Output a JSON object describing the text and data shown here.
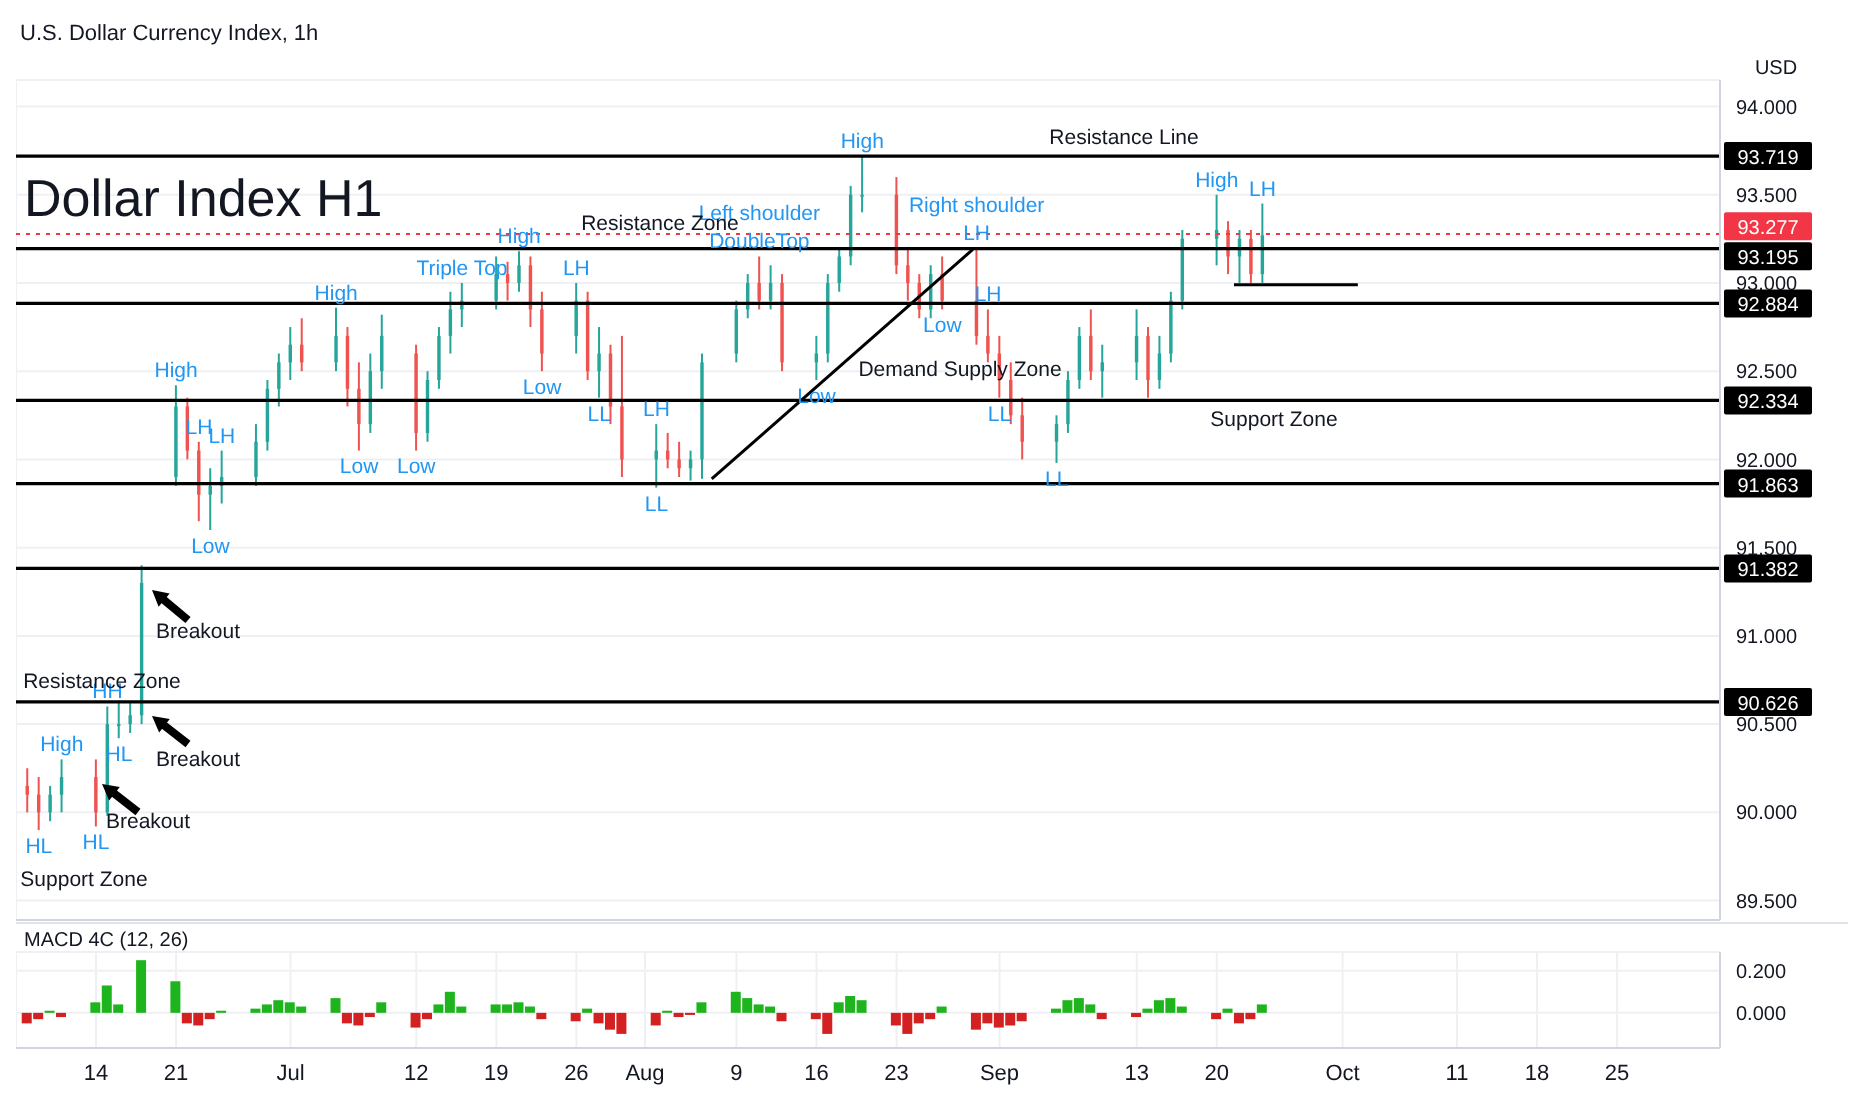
{
  "chart_data": [
    {
      "type": "candlestick",
      "subtitle": "U.S. Dollar Currency Index, 1h",
      "title": "Dollar Index H1",
      "ylabel": "USD",
      "x": [
        "--06-08",
        "--06-09",
        "--06-10",
        "--06-11",
        "--06-14",
        "--06-15",
        "--06-16",
        "--06-17",
        "--06-18",
        "--06-21",
        "--06-22",
        "--06-23",
        "--06-24",
        "--06-25",
        "--06-28",
        "--06-29",
        "--06-30",
        "--07-01",
        "--07-02",
        "--07-05",
        "--07-06",
        "--07-07",
        "--07-08",
        "--07-09",
        "--07-12",
        "--07-13",
        "--07-14",
        "--07-15",
        "--07-16",
        "--07-19",
        "--07-20",
        "--07-21",
        "--07-22",
        "--07-23",
        "--07-26",
        "--07-27",
        "--07-28",
        "--07-29",
        "--07-30",
        "--08-02",
        "--08-03",
        "--08-04",
        "--08-05",
        "--08-06",
        "--08-09",
        "--08-10",
        "--08-11",
        "--08-12",
        "--08-13",
        "--08-16",
        "--08-17",
        "--08-18",
        "--08-19",
        "--08-20",
        "--08-23",
        "--08-24",
        "--08-25",
        "--08-26",
        "--08-27",
        "--08-30",
        "--08-31",
        "--09-01",
        "--09-02",
        "--09-03",
        "--09-06",
        "--09-07",
        "--09-08",
        "--09-09",
        "--09-10",
        "--09-13",
        "--09-14",
        "--09-15",
        "--09-16",
        "--09-17",
        "--09-20",
        "--09-21",
        "--09-22",
        "--09-23",
        "--09-24"
      ],
      "ohlc": [
        [
          90.15,
          90.25,
          90.0,
          90.1
        ],
        [
          90.1,
          90.2,
          89.9,
          90.0
        ],
        [
          90.0,
          90.15,
          89.95,
          90.1
        ],
        [
          90.1,
          90.3,
          90.0,
          90.2
        ],
        [
          90.2,
          90.3,
          89.92,
          90.0
        ],
        [
          90.0,
          90.6,
          89.98,
          90.5
        ],
        [
          90.5,
          90.62,
          90.42,
          90.5
        ],
        [
          90.5,
          90.62,
          90.45,
          90.55
        ],
        [
          90.55,
          91.4,
          90.5,
          91.3
        ],
        [
          91.9,
          92.42,
          91.85,
          92.3
        ],
        [
          92.3,
          92.35,
          92.0,
          92.05
        ],
        [
          92.05,
          92.1,
          91.65,
          91.8
        ],
        [
          91.8,
          91.95,
          91.6,
          91.85
        ],
        [
          91.85,
          92.05,
          91.75,
          91.9
        ],
        [
          91.9,
          92.2,
          91.85,
          92.1
        ],
        [
          92.1,
          92.45,
          92.05,
          92.4
        ],
        [
          92.4,
          92.6,
          92.3,
          92.55
        ],
        [
          92.55,
          92.75,
          92.45,
          92.65
        ],
        [
          92.65,
          92.8,
          92.5,
          92.55
        ],
        [
          92.55,
          92.86,
          92.5,
          92.7
        ],
        [
          92.7,
          92.75,
          92.3,
          92.4
        ],
        [
          92.4,
          92.55,
          92.05,
          92.2
        ],
        [
          92.2,
          92.6,
          92.15,
          92.5
        ],
        [
          92.5,
          92.82,
          92.4,
          92.7
        ],
        [
          92.6,
          92.65,
          92.05,
          92.15
        ],
        [
          92.15,
          92.5,
          92.1,
          92.45
        ],
        [
          92.45,
          92.75,
          92.4,
          92.7
        ],
        [
          92.7,
          92.95,
          92.6,
          92.85
        ],
        [
          92.85,
          93.0,
          92.75,
          92.9
        ],
        [
          92.9,
          93.15,
          92.85,
          93.05
        ],
        [
          93.05,
          93.12,
          92.9,
          93.0
        ],
        [
          93.0,
          93.18,
          92.95,
          93.1
        ],
        [
          93.1,
          93.15,
          92.75,
          92.85
        ],
        [
          92.85,
          92.95,
          92.5,
          92.6
        ],
        [
          92.7,
          93.0,
          92.6,
          92.9
        ],
        [
          92.9,
          92.95,
          92.45,
          92.5
        ],
        [
          92.5,
          92.75,
          92.35,
          92.6
        ],
        [
          92.6,
          92.65,
          92.2,
          92.3
        ],
        [
          92.3,
          92.7,
          91.9,
          92.0
        ],
        [
          92.0,
          92.2,
          91.84,
          92.05
        ],
        [
          92.05,
          92.15,
          91.95,
          92.0
        ],
        [
          92.0,
          92.1,
          91.9,
          91.95
        ],
        [
          91.95,
          92.05,
          91.88,
          92.0
        ],
        [
          92.0,
          92.6,
          91.89,
          92.55
        ],
        [
          92.6,
          92.9,
          92.55,
          92.85
        ],
        [
          92.85,
          93.05,
          92.8,
          93.0
        ],
        [
          93.0,
          93.15,
          92.85,
          92.9
        ],
        [
          92.9,
          93.1,
          92.85,
          93.0
        ],
        [
          93.0,
          93.05,
          92.5,
          92.55
        ],
        [
          92.55,
          92.7,
          92.45,
          92.6
        ],
        [
          92.6,
          93.05,
          92.55,
          93.0
        ],
        [
          93.0,
          93.2,
          92.95,
          93.15
        ],
        [
          93.15,
          93.55,
          93.1,
          93.5
        ],
        [
          93.5,
          93.72,
          93.4,
          93.5
        ],
        [
          93.5,
          93.6,
          93.05,
          93.1
        ],
        [
          93.1,
          93.2,
          92.9,
          93.0
        ],
        [
          93.0,
          93.05,
          92.8,
          92.85
        ],
        [
          92.85,
          93.1,
          92.8,
          93.05
        ],
        [
          93.05,
          93.15,
          92.85,
          92.9
        ],
        [
          92.9,
          93.2,
          92.65,
          92.7
        ],
        [
          92.7,
          92.85,
          92.55,
          92.6
        ],
        [
          92.6,
          92.7,
          92.35,
          92.45
        ],
        [
          92.45,
          92.55,
          92.2,
          92.25
        ],
        [
          92.25,
          92.35,
          92.0,
          92.1
        ],
        [
          92.1,
          92.25,
          91.98,
          92.2
        ],
        [
          92.2,
          92.5,
          92.15,
          92.45
        ],
        [
          92.45,
          92.75,
          92.4,
          92.7
        ],
        [
          92.7,
          92.85,
          92.45,
          92.5
        ],
        [
          92.5,
          92.65,
          92.35,
          92.55
        ],
        [
          92.55,
          92.85,
          92.45,
          92.7
        ],
        [
          92.7,
          92.75,
          92.35,
          92.45
        ],
        [
          92.45,
          92.7,
          92.4,
          92.6
        ],
        [
          92.6,
          92.95,
          92.55,
          92.9
        ],
        [
          92.9,
          93.3,
          92.85,
          93.25
        ],
        [
          93.25,
          93.5,
          93.1,
          93.3
        ],
        [
          93.3,
          93.35,
          93.05,
          93.15
        ],
        [
          93.15,
          93.3,
          93.0,
          93.25
        ],
        [
          93.25,
          93.3,
          93.0,
          93.05
        ],
        [
          93.05,
          93.45,
          93.0,
          93.27
        ]
      ],
      "colors": [
        "#ef5350",
        "#ef5350",
        "#26a69a",
        "#26a69a",
        "#ef5350",
        "#26a69a",
        "#26a69a",
        "#26a69a",
        "#26a69a",
        "#26a69a",
        "#ef5350",
        "#ef5350",
        "#26a69a",
        "#26a69a",
        "#26a69a",
        "#26a69a",
        "#26a69a",
        "#26a69a",
        "#ef5350",
        "#26a69a",
        "#ef5350",
        "#ef5350",
        "#26a69a",
        "#26a69a",
        "#ef5350",
        "#26a69a",
        "#26a69a",
        "#26a69a",
        "#26a69a",
        "#26a69a",
        "#ef5350",
        "#26a69a",
        "#ef5350",
        "#ef5350",
        "#26a69a",
        "#ef5350",
        "#26a69a",
        "#ef5350",
        "#ef5350",
        "#26a69a",
        "#ef5350",
        "#ef5350",
        "#26a69a",
        "#26a69a",
        "#26a69a",
        "#26a69a",
        "#ef5350",
        "#26a69a",
        "#ef5350",
        "#26a69a",
        "#26a69a",
        "#26a69a",
        "#26a69a",
        "#26a69a",
        "#ef5350",
        "#ef5350",
        "#ef5350",
        "#26a69a",
        "#ef5350",
        "#ef5350",
        "#ef5350",
        "#ef5350",
        "#ef5350",
        "#ef5350",
        "#26a69a",
        "#26a69a",
        "#26a69a",
        "#ef5350",
        "#26a69a",
        "#26a69a",
        "#ef5350",
        "#26a69a",
        "#26a69a",
        "#26a69a",
        "#26a69a",
        "#ef5350",
        "#26a69a",
        "#ef5350",
        "#26a69a"
      ],
      "series": [
        {
          "type": "line",
          "color": "#000000",
          "x": [
            "--08-06T20:00",
            "--08-29T16:00"
          ],
          "values": [
            91.89,
            93.19
          ]
        },
        {
          "type": "line",
          "color": "#000000",
          "x": [
            "--09-21T12:00",
            "--10-02T08:00"
          ],
          "values": [
            92.99,
            92.99
          ]
        }
      ],
      "xlim": [
        "--06-07",
        "--11-03"
      ],
      "xticks": [
        {
          "value": "--06-14",
          "label": "14"
        },
        {
          "value": "--06-21",
          "label": "21"
        },
        {
          "value": "--07-01",
          "label": "Jul"
        },
        {
          "value": "--07-12",
          "label": "12"
        },
        {
          "value": "--07-19",
          "label": "19"
        },
        {
          "value": "--07-26",
          "label": "26"
        },
        {
          "value": "--08-01",
          "label": "Aug"
        },
        {
          "value": "--08-09",
          "label": "9"
        },
        {
          "value": "--08-16",
          "label": "16"
        },
        {
          "value": "--08-23",
          "label": "23"
        },
        {
          "value": "--09-01",
          "label": "Sep"
        },
        {
          "value": "--09-13",
          "label": "13"
        },
        {
          "value": "--09-20",
          "label": "20"
        },
        {
          "value": "--10-01",
          "label": "Oct"
        },
        {
          "value": "--10-11",
          "label": "11"
        },
        {
          "value": "--10-18",
          "label": "18"
        },
        {
          "value": "--10-25",
          "label": "25"
        }
      ],
      "ylim": [
        89.39,
        94.15
      ],
      "yticks": [
        {
          "value": 89.5,
          "label": "89.500"
        },
        {
          "value": 90,
          "label": "90.000"
        },
        {
          "value": 90.5,
          "label": "90.500"
        },
        {
          "value": 91,
          "label": "91.000"
        },
        {
          "value": 91.5,
          "label": "91.500"
        },
        {
          "value": 92,
          "label": "92.000"
        },
        {
          "value": 92.5,
          "label": "92.500"
        },
        {
          "value": 93,
          "label": "93.000"
        },
        {
          "value": 93.5,
          "label": "93.500"
        },
        {
          "value": 94,
          "label": "94.000"
        }
      ],
      "grid": true,
      "tick_labels": "y",
      "ref_lines": [
        {
          "axis": "y",
          "value": 93.719,
          "label": "93.719",
          "color": "#000000"
        },
        {
          "axis": "y",
          "value": 93.277,
          "label": "93.277",
          "color": "#f23645",
          "line_style": "dotted"
        },
        {
          "axis": "y",
          "value": 93.195,
          "label": "93.195",
          "color": "#000000"
        },
        {
          "axis": "y",
          "value": 92.884,
          "label": "92.884",
          "color": "#000000"
        },
        {
          "axis": "y",
          "value": 92.334,
          "label": "92.334",
          "color": "#000000"
        },
        {
          "axis": "y",
          "value": 91.863,
          "label": "91.863",
          "color": "#000000"
        },
        {
          "axis": "y",
          "value": 91.382,
          "label": "91.382",
          "color": "#000000"
        },
        {
          "axis": "y",
          "value": 90.626,
          "label": "90.626",
          "color": "#000000"
        }
      ],
      "annotations": [
        "Resistance Zone",
        "Resistance Line",
        "Demand Supply Zone",
        "Support Zone",
        "Breakout",
        "Breakout",
        "Breakout",
        "Resistance Zone",
        "Support Zone",
        {
          "text": "HL",
          "x": "--06-09",
          "y": 89.9
        },
        {
          "text": "High",
          "x": "--06-11",
          "y": 90.3
        },
        {
          "text": "HL",
          "x": "--06-14",
          "y": 89.92
        },
        {
          "text": "HH",
          "x": "--06-15",
          "y": 90.6
        },
        {
          "text": "HL",
          "x": "--06-16",
          "y": 90.42
        },
        {
          "text": "High",
          "x": "--06-21",
          "y": 92.42
        },
        {
          "text": "LH",
          "x": "--06-23",
          "y": 92.1
        },
        {
          "text": "Low",
          "x": "--06-24",
          "y": 91.6
        },
        {
          "text": "LH",
          "x": "--06-25",
          "y": 92.05
        },
        {
          "text": "High",
          "x": "--07-05",
          "y": 92.86
        },
        {
          "text": "Low",
          "x": "--07-07",
          "y": 92.05
        },
        {
          "text": "Low",
          "x": "--07-12",
          "y": 92.05
        },
        {
          "text": "Triple Top",
          "x": "--07-16",
          "y": 93.0
        },
        {
          "text": "High",
          "x": "--07-21",
          "y": 93.18
        },
        {
          "text": "Low",
          "x": "--07-23",
          "y": 92.5
        },
        {
          "text": "LH",
          "x": "--07-26",
          "y": 93.0
        },
        {
          "text": "LL",
          "x": "--07-28",
          "y": 92.35
        },
        {
          "text": "LH",
          "x": "--08-02",
          "y": 92.2
        },
        {
          "text": "LL",
          "x": "--08-02",
          "y": 91.84
        },
        {
          "text": "DoubleTop",
          "x": "--08-11",
          "y": 93.15
        },
        {
          "text": "Left shoulder",
          "x": "--08-11",
          "y": 93.15
        },
        {
          "text": "Low",
          "x": "--08-16",
          "y": 92.45
        },
        {
          "text": "High",
          "x": "--08-20",
          "y": 93.72
        },
        {
          "text": "Low",
          "x": "--08-27",
          "y": 92.85
        },
        {
          "text": "LH",
          "x": "--08-30",
          "y": 93.2
        },
        {
          "text": "Right shoulder",
          "x": "--08-30",
          "y": 93.2
        },
        {
          "text": "LH",
          "x": "--08-31",
          "y": 92.85
        },
        {
          "text": "LL",
          "x": "--09-01",
          "y": 92.35
        },
        {
          "text": "LL",
          "x": "--09-06",
          "y": 91.98
        },
        {
          "text": "High",
          "x": "--09-20",
          "y": 93.5
        },
        {
          "text": "LH",
          "x": "--09-24",
          "y": 93.45
        }
      ]
    },
    {
      "type": "bar",
      "title": "MACD 4C (12, 26)",
      "x": [
        "--06-08",
        "--06-09",
        "--06-10",
        "--06-11",
        "--06-14",
        "--06-15",
        "--06-16",
        "--06-17",
        "--06-18",
        "--06-21",
        "--06-22",
        "--06-23",
        "--06-24",
        "--06-25",
        "--06-28",
        "--06-29",
        "--06-30",
        "--07-01",
        "--07-02",
        "--07-05",
        "--07-06",
        "--07-07",
        "--07-08",
        "--07-09",
        "--07-12",
        "--07-13",
        "--07-14",
        "--07-15",
        "--07-16",
        "--07-19",
        "--07-20",
        "--07-21",
        "--07-22",
        "--07-23",
        "--07-26",
        "--07-27",
        "--07-28",
        "--07-29",
        "--07-30",
        "--08-02",
        "--08-03",
        "--08-04",
        "--08-05",
        "--08-06",
        "--08-09",
        "--08-10",
        "--08-11",
        "--08-12",
        "--08-13",
        "--08-16",
        "--08-17",
        "--08-18",
        "--08-19",
        "--08-20",
        "--08-23",
        "--08-24",
        "--08-25",
        "--08-26",
        "--08-27",
        "--08-30",
        "--08-31",
        "--09-01",
        "--09-02",
        "--09-03",
        "--09-06",
        "--09-07",
        "--09-08",
        "--09-09",
        "--09-10",
        "--09-13",
        "--09-14",
        "--09-15",
        "--09-16",
        "--09-17",
        "--09-20",
        "--09-21",
        "--09-22",
        "--09-23",
        "--09-24"
      ],
      "values": [
        -0.05,
        -0.03,
        0.01,
        -0.02,
        0.05,
        0.13,
        0.04,
        0.0,
        0.25,
        0.15,
        -0.05,
        -0.06,
        -0.03,
        0.01,
        0.02,
        0.04,
        0.06,
        0.05,
        0.03,
        0.07,
        -0.05,
        -0.06,
        -0.02,
        0.05,
        -0.07,
        -0.03,
        0.04,
        0.1,
        0.03,
        0.04,
        0.04,
        0.05,
        0.03,
        -0.03,
        -0.04,
        0.02,
        -0.05,
        -0.08,
        -0.1,
        -0.06,
        0.01,
        -0.02,
        -0.01,
        0.05,
        0.1,
        0.07,
        0.04,
        0.03,
        -0.04,
        -0.03,
        -0.1,
        0.05,
        0.08,
        0.06,
        -0.06,
        -0.1,
        -0.05,
        -0.03,
        0.03,
        -0.08,
        -0.05,
        -0.07,
        -0.06,
        -0.04,
        0.02,
        0.06,
        0.07,
        0.04,
        -0.03,
        -0.02,
        0.02,
        0.06,
        0.07,
        0.03,
        -0.03,
        0.02,
        -0.05,
        -0.03,
        0.04
      ],
      "colors": [
        "#d32020",
        "#d32020",
        "#1db41d",
        "#d32020",
        "#1db41d",
        "#1db41d",
        "#1db41d",
        "#1db41d",
        "#1db41d",
        "#1db41d",
        "#d32020",
        "#d32020",
        "#d32020",
        "#1db41d",
        "#1db41d",
        "#1db41d",
        "#1db41d",
        "#1db41d",
        "#1db41d",
        "#1db41d",
        "#d32020",
        "#d32020",
        "#d32020",
        "#1db41d",
        "#d32020",
        "#d32020",
        "#1db41d",
        "#1db41d",
        "#1db41d",
        "#1db41d",
        "#1db41d",
        "#1db41d",
        "#1db41d",
        "#d32020",
        "#d32020",
        "#1db41d",
        "#d32020",
        "#d32020",
        "#d32020",
        "#d32020",
        "#1db41d",
        "#d32020",
        "#d32020",
        "#1db41d",
        "#1db41d",
        "#1db41d",
        "#1db41d",
        "#1db41d",
        "#d32020",
        "#d32020",
        "#d32020",
        "#1db41d",
        "#1db41d",
        "#1db41d",
        "#d32020",
        "#d32020",
        "#d32020",
        "#d32020",
        "#1db41d",
        "#d32020",
        "#d32020",
        "#d32020",
        "#d32020",
        "#d32020",
        "#1db41d",
        "#1db41d",
        "#1db41d",
        "#1db41d",
        "#d32020",
        "#d32020",
        "#1db41d",
        "#1db41d",
        "#1db41d",
        "#1db41d",
        "#d32020",
        "#1db41d",
        "#d32020",
        "#d32020",
        "#1db41d"
      ],
      "xlim": [
        "--06-07",
        "--11-03"
      ],
      "xticks": [
        {
          "value": "--06-14",
          "label": "14"
        },
        {
          "value": "--06-21",
          "label": "21"
        },
        {
          "value": "--07-01",
          "label": "Jul"
        },
        {
          "value": "--07-12",
          "label": "12"
        },
        {
          "value": "--07-19",
          "label": "19"
        },
        {
          "value": "--07-26",
          "label": "26"
        },
        {
          "value": "--08-01",
          "label": "Aug"
        },
        {
          "value": "--08-09",
          "label": "9"
        },
        {
          "value": "--08-16",
          "label": "16"
        },
        {
          "value": "--08-23",
          "label": "23"
        },
        {
          "value": "--09-01",
          "label": "Sep"
        },
        {
          "value": "--09-13",
          "label": "13"
        },
        {
          "value": "--09-20",
          "label": "20"
        },
        {
          "value": "--10-01",
          "label": "Oct"
        },
        {
          "value": "--10-11",
          "label": "11"
        },
        {
          "value": "--10-18",
          "label": "18"
        },
        {
          "value": "--10-25",
          "label": "25"
        }
      ],
      "ylim": [
        -0.167,
        0.289
      ],
      "yticks": [
        {
          "value": 0,
          "label": "0.000"
        },
        {
          "value": 0.2,
          "label": "0.200"
        }
      ],
      "grid": true
    }
  ]
}
